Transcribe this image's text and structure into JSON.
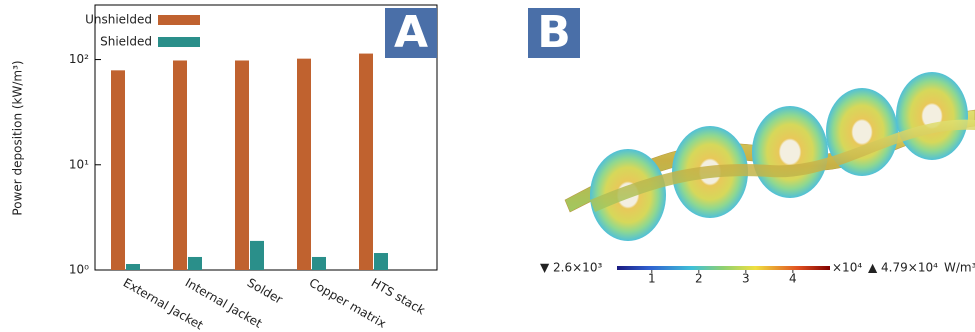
{
  "chart_data": {
    "type": "bar",
    "panel_label": "A",
    "ylabel": "Power deposition (kW/m³)",
    "categories": [
      "External Jacket",
      "Internal Jacket",
      "Solder",
      "Copper matrix",
      "HTS stack"
    ],
    "series": [
      {
        "name": "Unshielded",
        "color": "#c0622f",
        "values": [
          79,
          98,
          98,
          102,
          114
        ]
      },
      {
        "name": "Shielded",
        "color": "#2a8f8a",
        "values": [
          1.14,
          1.33,
          1.89,
          1.33,
          1.45
        ]
      }
    ],
    "log_scale": true,
    "ylim": [
      1,
      330
    ],
    "yticks": [
      {
        "value": 1,
        "label": "10⁰"
      },
      {
        "value": 10,
        "label": "10¹"
      },
      {
        "value": 100,
        "label": "10²"
      }
    ],
    "legend": "upper left"
  },
  "panel_b": {
    "label": "B",
    "colorbar": {
      "min_label": "▼ 2.6×10³",
      "lim": [
        0.26,
        4.79
      ],
      "ticks": [
        1,
        2,
        3,
        4
      ],
      "multiplier": "×10⁴",
      "max_label": "▲ 4.79×10⁴",
      "unit": "W/m³"
    }
  }
}
